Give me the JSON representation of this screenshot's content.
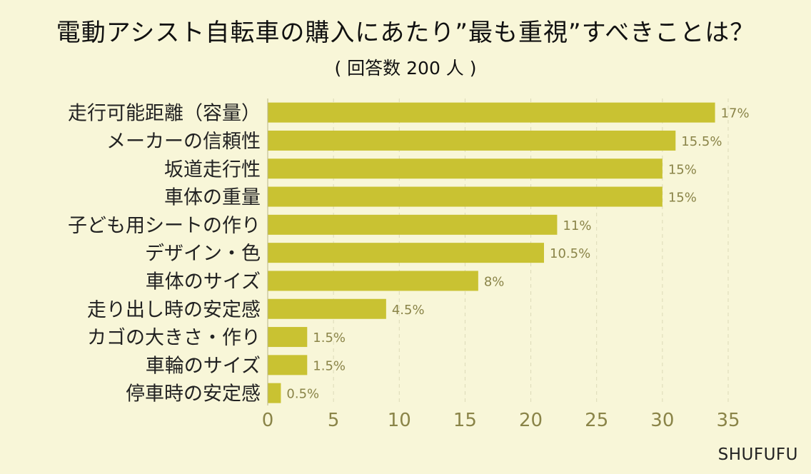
{
  "chart_data": {
    "type": "bar",
    "orientation": "horizontal",
    "title": "電動アシスト自転車の購入にあたり”最も重視”すべきことは？",
    "subtitle": "( 回答数 200 人 )",
    "categories": [
      "走行可能距離（容量）",
      "メーカーの信頼性",
      "坂道走行性",
      "車体の重量",
      "子ども用シートの作り",
      "デザイン・色",
      "車体のサイズ",
      "走り出し時の安定感",
      "カゴの大きさ・作り",
      "車輪のサイズ",
      "停車時の安定感"
    ],
    "values": [
      34,
      31,
      30,
      30,
      22,
      21,
      16,
      9,
      3,
      3,
      1
    ],
    "data_labels": [
      "17%",
      "15.5%",
      "15%",
      "15%",
      "11%",
      "10.5%",
      "8%",
      "4.5%",
      "1.5%",
      "1.5%",
      "0.5%"
    ],
    "xlim": [
      0,
      35
    ],
    "xticks": [
      0,
      5,
      10,
      15,
      20,
      25,
      30,
      35
    ],
    "grid": true,
    "legend": "none",
    "bar_color": "#c9c232",
    "label_color": "#8a8448",
    "tick_color": "#8a8448"
  },
  "credit": "SHUFUFU"
}
